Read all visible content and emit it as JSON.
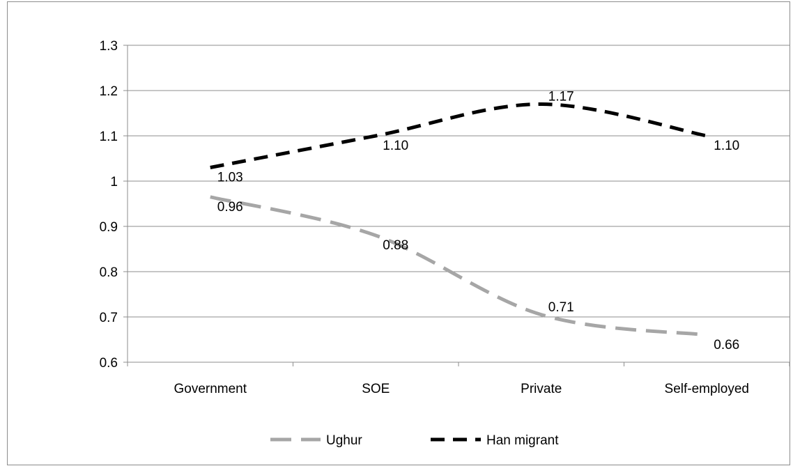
{
  "chart_data": {
    "type": "line",
    "title": "",
    "xlabel": "",
    "ylabel": "",
    "categories": [
      "Government",
      "SOE",
      "Private",
      "Self-employed"
    ],
    "ylim": [
      0.6,
      1.3
    ],
    "yticks": [
      "0.6",
      "0.7",
      "0.8",
      "0.9",
      "1",
      "1.1",
      "1.2",
      "1.3"
    ],
    "grid": true,
    "legend_position": "bottom",
    "series": [
      {
        "name": "Ughur",
        "values": [
          0.965,
          0.88,
          0.705,
          0.66
        ],
        "labels": [
          "0.96",
          "0.88",
          "0.71",
          "0.66"
        ],
        "color": "#a6a6a6",
        "dash": "dashed"
      },
      {
        "name": "Han migrant",
        "values": [
          1.03,
          1.1,
          1.17,
          1.1
        ],
        "labels": [
          "1.03",
          "1.10",
          "1.17",
          "1.10"
        ],
        "color": "#000000",
        "dash": "dashed"
      }
    ]
  }
}
